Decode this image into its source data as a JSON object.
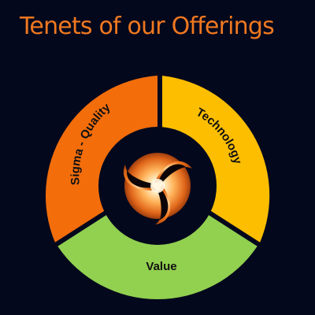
{
  "title": "Tenets of our Offerings",
  "segments": [
    {
      "label": "Sigma - Quality",
      "color": "#f36d0b"
    },
    {
      "label": "Technology",
      "color": "#fdbe00"
    },
    {
      "label": "Value",
      "color": "#92d050"
    }
  ],
  "center_icon": "tri-swirl-logo-icon",
  "colors": {
    "background": "#04081c",
    "title": "#f07820",
    "hub_ring": "#04081c",
    "logo_orange": "#f0741a",
    "logo_dark": "#0c0508"
  }
}
